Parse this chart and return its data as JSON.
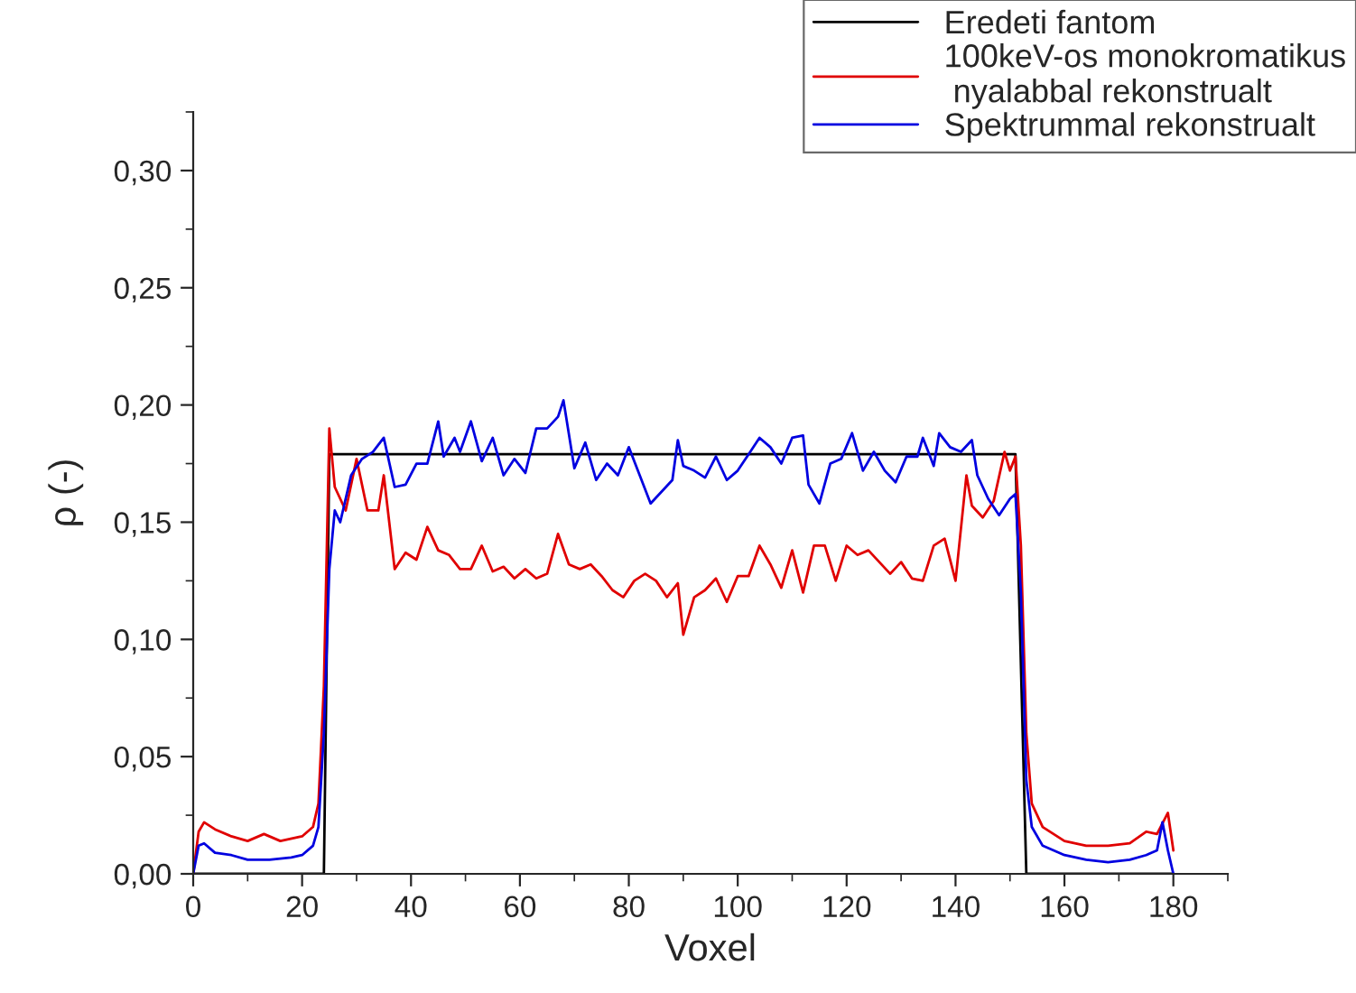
{
  "chart_data": {
    "type": "line",
    "xlabel": "Voxel",
    "ylabel": "ρ (-)",
    "xlim": [
      0,
      190
    ],
    "xticks": [
      0,
      20,
      40,
      60,
      80,
      100,
      120,
      140,
      160,
      180
    ],
    "ylim": [
      0,
      0.325
    ],
    "yticks": [
      {
        "value": 0,
        "label": "0,00"
      },
      {
        "value": 0.05,
        "label": "0,05"
      },
      {
        "value": 0.1,
        "label": "0,10"
      },
      {
        "value": 0.15,
        "label": "0,15"
      },
      {
        "value": 0.2,
        "label": "0,20"
      },
      {
        "value": 0.25,
        "label": "0,25"
      },
      {
        "value": 0.3,
        "label": "0,30"
      }
    ],
    "grid": false,
    "legend": "top right",
    "series": [
      {
        "name": "Eredeti fantom",
        "color": "#000000",
        "x": [
          0,
          24,
          25,
          151,
          153,
          180
        ],
        "values": [
          0,
          0,
          0.179,
          0.179,
          0,
          0
        ]
      },
      {
        "name": "100keV-os monokromatikus\n nyalabbal rekonstrualt",
        "color": "#e00000",
        "x": [
          0,
          1,
          2,
          4,
          7,
          10,
          13,
          16,
          20,
          22,
          23,
          24,
          25,
          26,
          28,
          30,
          32,
          34,
          35,
          37,
          39,
          41,
          43,
          45,
          47,
          49,
          51,
          53,
          55,
          57,
          59,
          61,
          63,
          65,
          67,
          69,
          71,
          73,
          75,
          77,
          79,
          81,
          83,
          85,
          87,
          89,
          90,
          92,
          94,
          96,
          98,
          100,
          102,
          104,
          106,
          108,
          110,
          112,
          114,
          116,
          118,
          120,
          122,
          124,
          126,
          128,
          130,
          132,
          134,
          136,
          138,
          140,
          142,
          143,
          145,
          147,
          149,
          150,
          151,
          152,
          153,
          154,
          156,
          160,
          164,
          168,
          172,
          175,
          177,
          179,
          180
        ],
        "values": [
          0.0,
          0.018,
          0.022,
          0.019,
          0.016,
          0.014,
          0.017,
          0.014,
          0.016,
          0.02,
          0.03,
          0.08,
          0.19,
          0.165,
          0.155,
          0.177,
          0.155,
          0.155,
          0.17,
          0.13,
          0.137,
          0.134,
          0.148,
          0.138,
          0.136,
          0.13,
          0.13,
          0.14,
          0.129,
          0.131,
          0.126,
          0.13,
          0.126,
          0.128,
          0.145,
          0.132,
          0.13,
          0.132,
          0.127,
          0.121,
          0.118,
          0.125,
          0.128,
          0.125,
          0.118,
          0.124,
          0.102,
          0.118,
          0.121,
          0.126,
          0.116,
          0.127,
          0.127,
          0.14,
          0.132,
          0.122,
          0.138,
          0.12,
          0.14,
          0.14,
          0.125,
          0.14,
          0.136,
          0.138,
          0.133,
          0.128,
          0.133,
          0.126,
          0.125,
          0.14,
          0.143,
          0.125,
          0.17,
          0.157,
          0.152,
          0.159,
          0.18,
          0.172,
          0.178,
          0.14,
          0.06,
          0.03,
          0.02,
          0.014,
          0.012,
          0.012,
          0.013,
          0.018,
          0.017,
          0.026,
          0.01
        ]
      },
      {
        "name": "Spektrummal rekonstrualt",
        "color": "#0000e0",
        "x": [
          0,
          1,
          2,
          4,
          7,
          10,
          14,
          18,
          20,
          22,
          23,
          24,
          25,
          26,
          27,
          29,
          31,
          33,
          35,
          37,
          39,
          41,
          43,
          45,
          46,
          48,
          49,
          51,
          53,
          55,
          57,
          59,
          61,
          63,
          65,
          67,
          68,
          70,
          72,
          74,
          76,
          78,
          80,
          82,
          84,
          86,
          88,
          89,
          90,
          92,
          94,
          96,
          98,
          100,
          102,
          104,
          106,
          108,
          110,
          112,
          113,
          115,
          117,
          119,
          121,
          123,
          125,
          127,
          129,
          131,
          133,
          134,
          136,
          137,
          139,
          141,
          143,
          144,
          146,
          148,
          150,
          151,
          152,
          153,
          154,
          156,
          160,
          164,
          168,
          172,
          175,
          177,
          178,
          179,
          180
        ],
        "values": [
          0.0,
          0.012,
          0.013,
          0.009,
          0.008,
          0.006,
          0.006,
          0.007,
          0.008,
          0.012,
          0.02,
          0.06,
          0.13,
          0.155,
          0.15,
          0.17,
          0.177,
          0.18,
          0.186,
          0.165,
          0.166,
          0.175,
          0.175,
          0.193,
          0.178,
          0.186,
          0.18,
          0.193,
          0.176,
          0.186,
          0.17,
          0.177,
          0.171,
          0.19,
          0.19,
          0.195,
          0.202,
          0.173,
          0.184,
          0.168,
          0.175,
          0.17,
          0.182,
          0.17,
          0.158,
          0.163,
          0.168,
          0.185,
          0.174,
          0.172,
          0.169,
          0.178,
          0.168,
          0.172,
          0.179,
          0.186,
          0.182,
          0.175,
          0.186,
          0.187,
          0.166,
          0.158,
          0.175,
          0.177,
          0.188,
          0.172,
          0.18,
          0.172,
          0.167,
          0.178,
          0.178,
          0.186,
          0.174,
          0.188,
          0.182,
          0.18,
          0.185,
          0.17,
          0.16,
          0.153,
          0.16,
          0.162,
          0.12,
          0.04,
          0.02,
          0.012,
          0.008,
          0.006,
          0.005,
          0.006,
          0.008,
          0.01,
          0.022,
          0.01,
          0.0
        ]
      }
    ]
  }
}
